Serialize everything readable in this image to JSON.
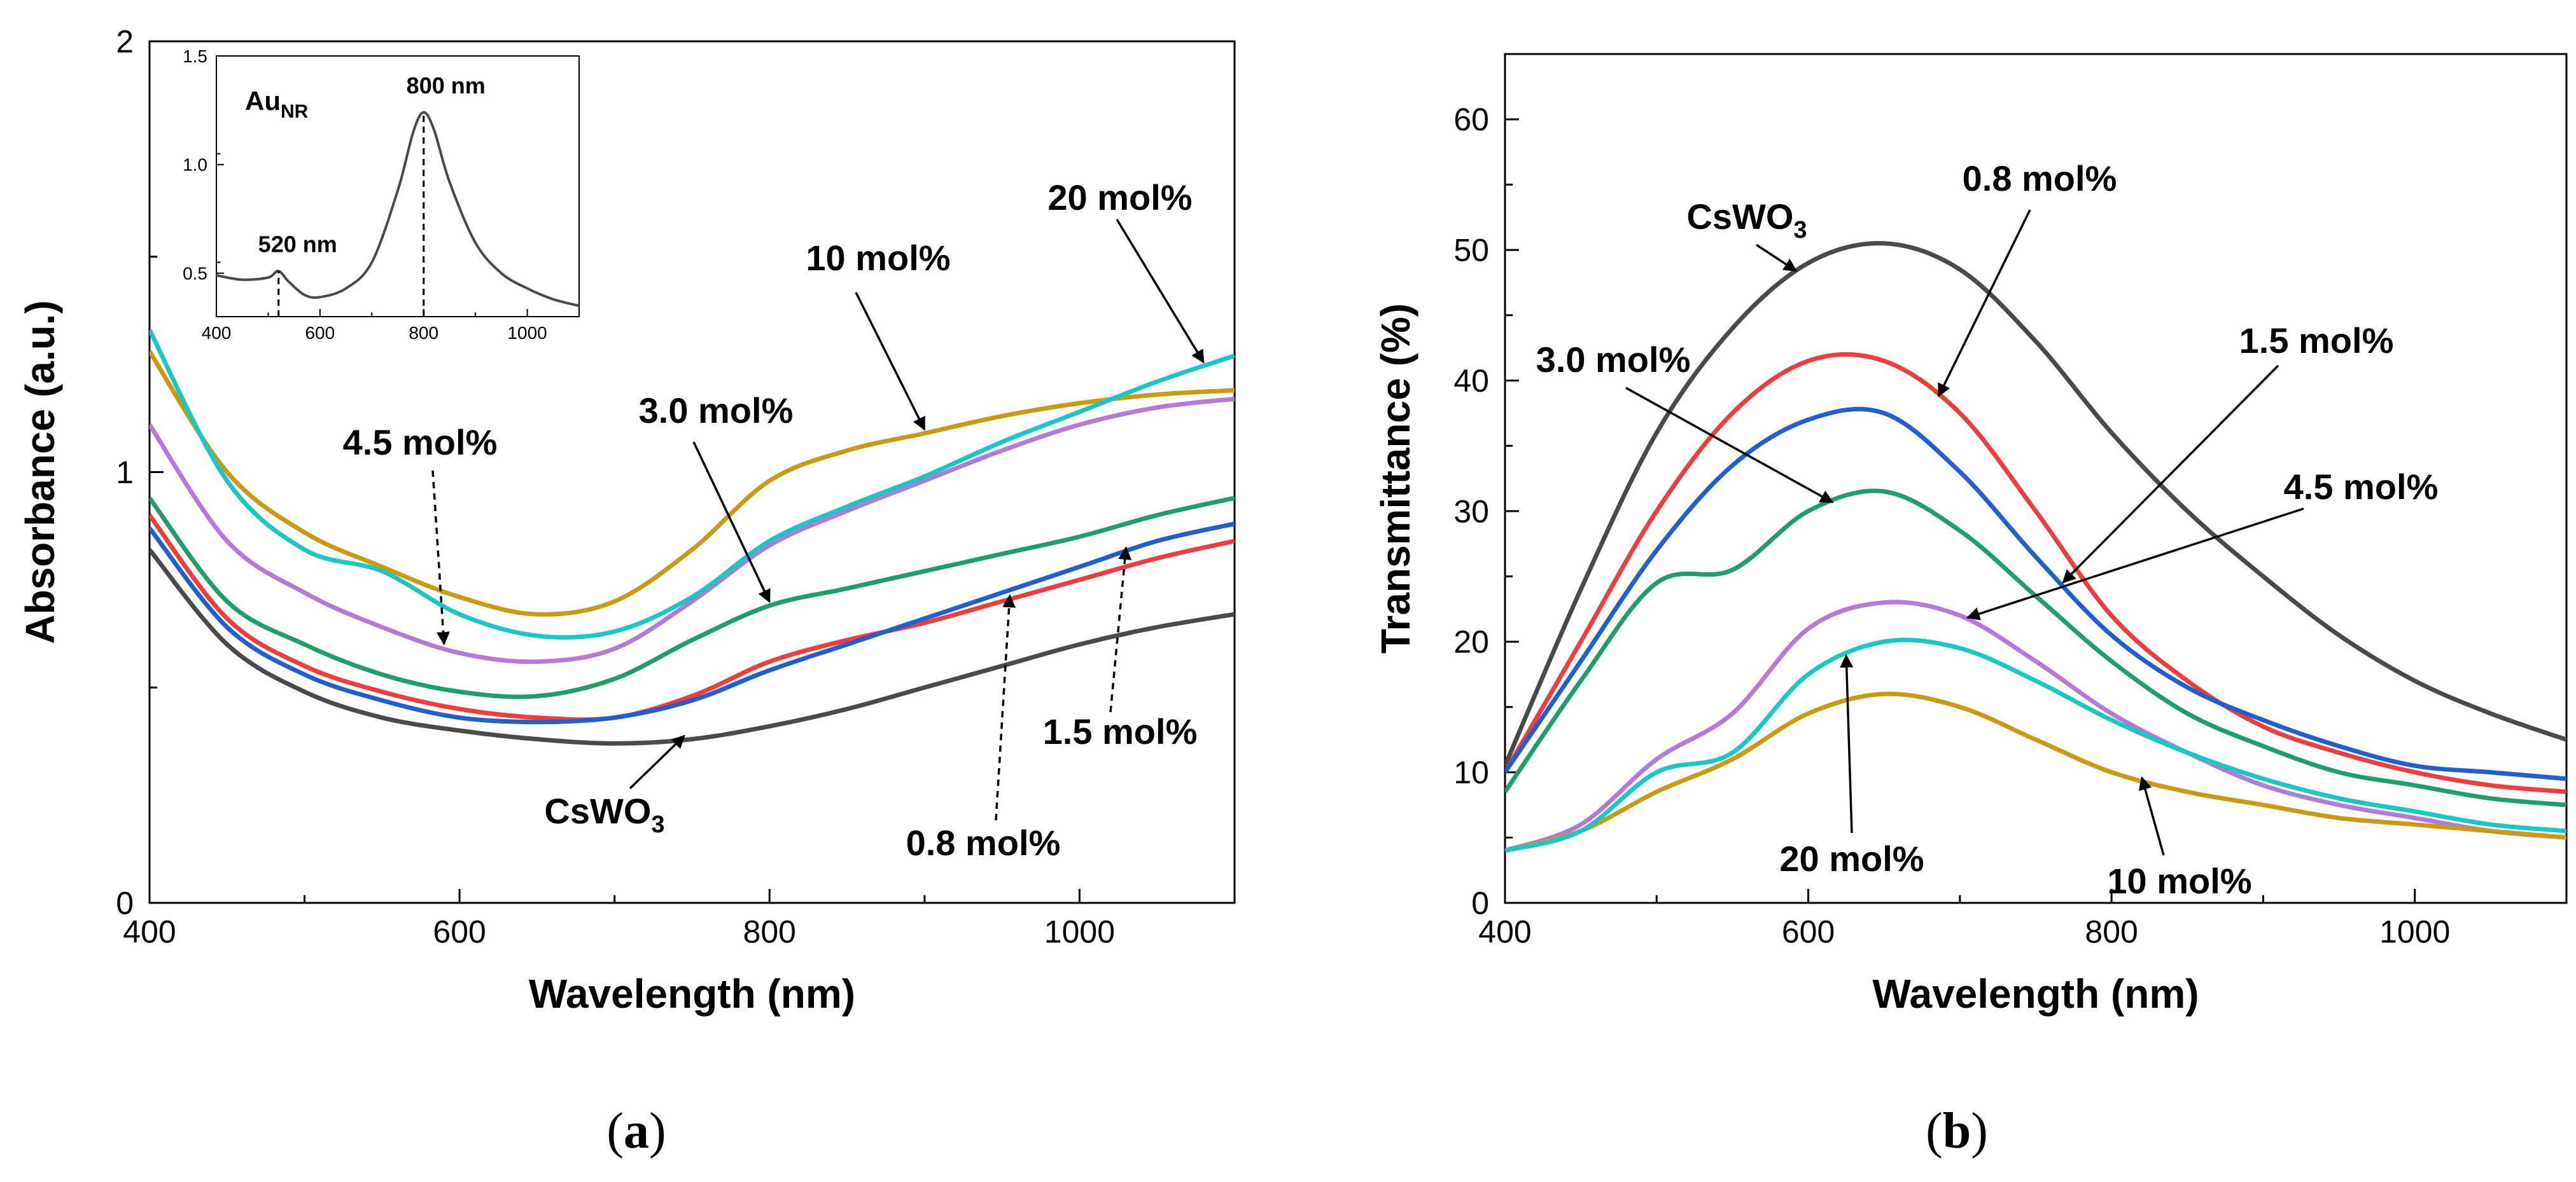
{
  "panels": {
    "a": {
      "label_open": "(",
      "label_letter": "a",
      "label_close": ")"
    },
    "b": {
      "label_open": "(",
      "label_letter": "b",
      "label_close": ")"
    }
  },
  "chart_data": [
    {
      "type": "line",
      "title": "",
      "xlabel": "Wavelength (nm)",
      "ylabel": "Absorbance (a.u.)",
      "xlim": [
        400,
        1100
      ],
      "ylim": [
        0,
        2
      ],
      "xticks": [
        400,
        600,
        800,
        1000
      ],
      "yticks": [
        0,
        1,
        2
      ],
      "x": [
        400,
        450,
        500,
        550,
        600,
        650,
        700,
        750,
        800,
        850,
        900,
        950,
        1000,
        1050,
        1100
      ],
      "series": [
        {
          "name": "CsWO3",
          "color": "#4a4a4a",
          "values": [
            0.82,
            0.6,
            0.49,
            0.43,
            0.4,
            0.38,
            0.37,
            0.38,
            0.41,
            0.45,
            0.5,
            0.55,
            0.6,
            0.64,
            0.67
          ]
        },
        {
          "name": "0.8 mol%",
          "color": "#f03c3c",
          "values": [
            0.9,
            0.66,
            0.55,
            0.49,
            0.45,
            0.43,
            0.43,
            0.48,
            0.56,
            0.61,
            0.65,
            0.7,
            0.75,
            0.8,
            0.84
          ]
        },
        {
          "name": "1.5 mol%",
          "color": "#1f5fd0",
          "values": [
            0.87,
            0.64,
            0.53,
            0.47,
            0.43,
            0.42,
            0.43,
            0.47,
            0.54,
            0.6,
            0.66,
            0.72,
            0.78,
            0.84,
            0.88
          ]
        },
        {
          "name": "3.0 mol%",
          "color": "#1e9e6a",
          "values": [
            0.94,
            0.7,
            0.6,
            0.53,
            0.49,
            0.48,
            0.52,
            0.61,
            0.69,
            0.73,
            0.77,
            0.81,
            0.85,
            0.9,
            0.94
          ]
        },
        {
          "name": "4.5 mol%",
          "color": "#b57ad8",
          "values": [
            1.11,
            0.84,
            0.72,
            0.64,
            0.58,
            0.56,
            0.59,
            0.7,
            0.83,
            0.91,
            0.98,
            1.05,
            1.11,
            1.15,
            1.17
          ]
        },
        {
          "name": "10 mol%",
          "color": "#cc9a12",
          "values": [
            1.28,
            1.0,
            0.86,
            0.78,
            0.71,
            0.67,
            0.7,
            0.82,
            0.98,
            1.05,
            1.09,
            1.13,
            1.16,
            1.18,
            1.19
          ]
        },
        {
          "name": "20 mol%",
          "color": "#19c7c7",
          "values": [
            1.33,
            0.98,
            0.82,
            0.77,
            0.67,
            0.62,
            0.63,
            0.71,
            0.84,
            0.92,
            0.99,
            1.07,
            1.14,
            1.21,
            1.27
          ]
        }
      ],
      "annotations": [
        {
          "text": "CsWO",
          "sub": "3",
          "series": "CsWO3"
        },
        {
          "text": "0.8 mol%",
          "series": "0.8 mol%"
        },
        {
          "text": "1.5 mol%",
          "series": "1.5 mol%"
        },
        {
          "text": "3.0 mol%",
          "series": "3.0 mol%"
        },
        {
          "text": "4.5 mol%",
          "series": "4.5 mol%"
        },
        {
          "text": "10 mol%",
          "series": "10 mol%"
        },
        {
          "text": "20 mol%",
          "series": "20 mol%"
        }
      ],
      "inset": {
        "type": "line",
        "label": "Au",
        "label_sub": "NR",
        "xlim": [
          400,
          1100
        ],
        "ylim": [
          0.3,
          1.5
        ],
        "xticks": [
          400,
          600,
          800,
          1000
        ],
        "yticks": [
          0.5,
          1.0,
          1.5
        ],
        "x": [
          400,
          450,
          500,
          520,
          540,
          570,
          600,
          650,
          700,
          750,
          780,
          800,
          820,
          850,
          900,
          950,
          1000,
          1050,
          1100
        ],
        "values": [
          0.49,
          0.47,
          0.48,
          0.51,
          0.46,
          0.4,
          0.39,
          0.43,
          0.55,
          0.88,
          1.15,
          1.24,
          1.16,
          0.92,
          0.64,
          0.5,
          0.43,
          0.38,
          0.35
        ],
        "markers": [
          {
            "x": 520,
            "text": "520 nm"
          },
          {
            "x": 800,
            "text": "800 nm"
          }
        ]
      }
    },
    {
      "type": "line",
      "title": "",
      "xlabel": "Wavelength (nm)",
      "ylabel": "Transmittance (%)",
      "xlim": [
        400,
        1100
      ],
      "ylim": [
        0,
        65
      ],
      "xticks": [
        400,
        600,
        800,
        1000
      ],
      "yticks": [
        0,
        10,
        20,
        30,
        40,
        50,
        60
      ],
      "x": [
        400,
        450,
        500,
        550,
        600,
        650,
        700,
        750,
        800,
        850,
        900,
        950,
        1000,
        1050,
        1100
      ],
      "series": [
        {
          "name": "CsWO3",
          "color": "#4a4a4a",
          "values": [
            10.5,
            24.0,
            36.0,
            44.0,
            49.0,
            50.5,
            48.5,
            43.0,
            36.0,
            30.0,
            25.0,
            20.5,
            17.0,
            14.5,
            12.5
          ]
        },
        {
          "name": "0.8 mol%",
          "color": "#f03c3c",
          "values": [
            10.0,
            20.0,
            30.0,
            37.5,
            41.5,
            41.5,
            37.5,
            30.0,
            22.0,
            17.0,
            13.5,
            11.5,
            10.0,
            9.0,
            8.5
          ]
        },
        {
          "name": "1.5 mol%",
          "color": "#1f5fd0",
          "values": [
            10.0,
            18.5,
            27.0,
            33.5,
            37.0,
            37.5,
            33.0,
            26.5,
            20.5,
            16.5,
            14.0,
            12.0,
            10.5,
            10.0,
            9.5
          ]
        },
        {
          "name": "3.0 mol%",
          "color": "#1e9e6a",
          "values": [
            8.5,
            17.0,
            24.5,
            25.5,
            30.0,
            31.5,
            28.5,
            23.5,
            18.5,
            14.5,
            12.0,
            10.0,
            9.0,
            8.0,
            7.5
          ]
        },
        {
          "name": "4.5 mol%",
          "color": "#b57ad8",
          "values": [
            4.0,
            6.0,
            11.0,
            14.5,
            21.0,
            23.0,
            22.0,
            18.5,
            14.5,
            11.5,
            9.0,
            7.5,
            6.5,
            5.5,
            5.0
          ]
        },
        {
          "name": "10 mol%",
          "color": "#cc9a12",
          "values": [
            4.0,
            5.5,
            8.5,
            11.0,
            14.5,
            16.0,
            15.0,
            12.5,
            10.0,
            8.5,
            7.5,
            6.5,
            6.0,
            5.5,
            5.0
          ]
        },
        {
          "name": "20 mol%",
          "color": "#19c7c7",
          "values": [
            4.0,
            5.5,
            10.0,
            11.5,
            17.5,
            20.0,
            19.5,
            17.0,
            14.0,
            11.5,
            9.5,
            8.0,
            7.0,
            6.0,
            5.5
          ]
        }
      ],
      "annotations": [
        {
          "text": "CsWO",
          "sub": "3",
          "series": "CsWO3"
        },
        {
          "text": "0.8 mol%",
          "series": "0.8 mol%"
        },
        {
          "text": "1.5 mol%",
          "series": "1.5 mol%"
        },
        {
          "text": "3.0 mol%",
          "series": "3.0 mol%"
        },
        {
          "text": "4.5 mol%",
          "series": "4.5 mol%"
        },
        {
          "text": "10 mol%",
          "series": "10 mol%"
        },
        {
          "text": "20 mol%",
          "series": "20 mol%"
        }
      ]
    }
  ]
}
